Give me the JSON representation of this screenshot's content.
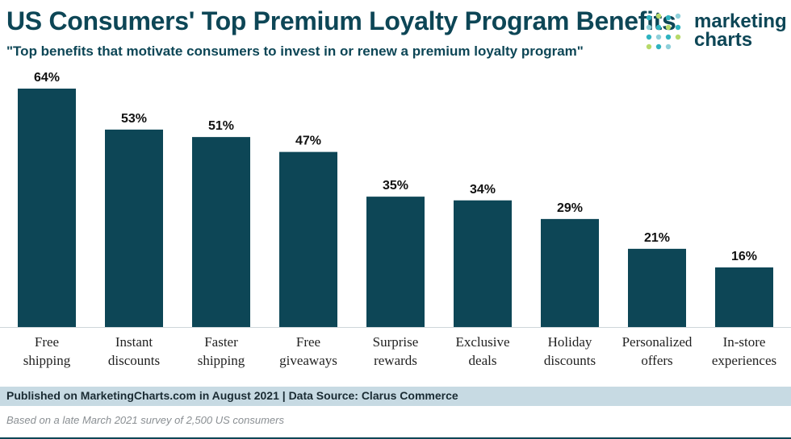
{
  "header": {
    "title": "US Consumers' Top Premium Loyalty Program Benefits",
    "subtitle": "\"Top benefits that motivate consumers to invest in or renew a premium loyalty program\""
  },
  "logo": {
    "line1": "marketing",
    "line2": "charts"
  },
  "chart_data": {
    "type": "bar",
    "title": "US Consumers' Top Premium Loyalty Program Benefits",
    "subtitle": "\"Top benefits that motivate consumers to invest in or renew a premium loyalty program\"",
    "categories": [
      [
        "Free",
        "shipping"
      ],
      [
        "Instant",
        "discounts"
      ],
      [
        "Faster",
        "shipping"
      ],
      [
        "Free",
        "giveaways"
      ],
      [
        "Surprise",
        "rewards"
      ],
      [
        "Exclusive",
        "deals"
      ],
      [
        "Holiday",
        "discounts"
      ],
      [
        "Personalized",
        "offers"
      ],
      [
        "In-store",
        "experiences"
      ]
    ],
    "values": [
      64,
      53,
      51,
      47,
      35,
      34,
      29,
      21,
      16
    ],
    "value_labels": [
      "64%",
      "53%",
      "51%",
      "47%",
      "35%",
      "34%",
      "29%",
      "21%",
      "16%"
    ],
    "ylim": [
      0,
      64
    ],
    "grid": false,
    "bar_color": "#0d4656"
  },
  "footer": {
    "source": "Published on MarketingCharts.com in August 2021 | Data Source: Clarus Commerce",
    "note": "Based on a late March 2021 survey of 2,500 US consumers"
  }
}
